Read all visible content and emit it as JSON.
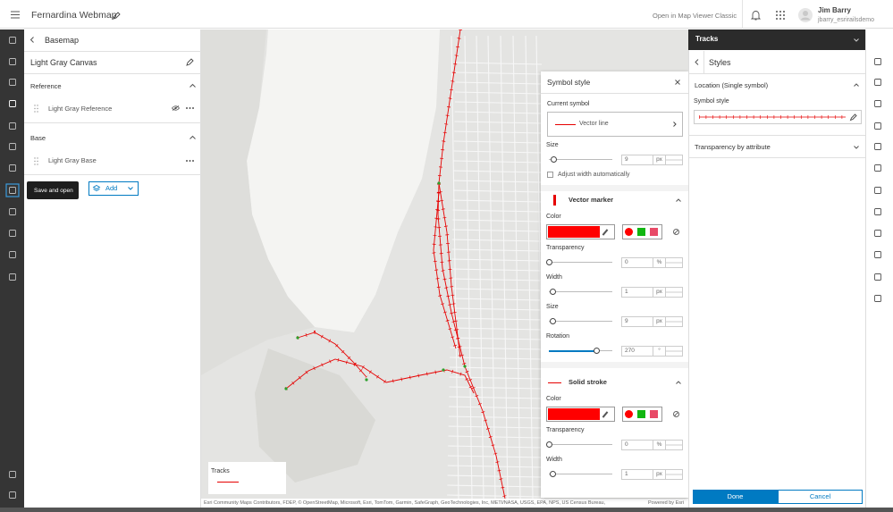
{
  "header": {
    "title": "Fernardina Webmap",
    "classic_link": "Open in Map Viewer Classic",
    "user_name": "Jim Barry",
    "user_id": "jbarry_esrirailsdemo"
  },
  "tooltip": "Save and open",
  "basemap_panel": {
    "title": "Basemap",
    "name": "Light Gray Canvas",
    "sections": [
      {
        "title": "Reference",
        "layer": "Light Gray Reference"
      },
      {
        "title": "Base",
        "layer": "Light Gray Base"
      }
    ],
    "add_button": "Add"
  },
  "map": {
    "legend_title": "Tracks",
    "attribution": "Esri Community Maps Contributors, FDEP, © OpenStreetMap, Microsoft, Esri, TomTom, Garmin, SafeGraph, GeoTechnologies, Inc, METI/NASA, USGS, EPA, NPS, US Census Bureau,",
    "powered_by": "Powered by Esri"
  },
  "symbol_style": {
    "title": "Symbol style",
    "current_symbol_label": "Current symbol",
    "current_symbol": "Vector line",
    "size": {
      "label": "Size",
      "value": 9,
      "unit": "px"
    },
    "adjust_width": "Adjust width automatically",
    "vector_marker": {
      "title": "Vector marker",
      "color_label": "Color",
      "transparency": {
        "label": "Transparency",
        "value": 0,
        "unit": "%"
      },
      "width": {
        "label": "Width",
        "value": 1,
        "unit": "px"
      },
      "size": {
        "label": "Size",
        "value": 9,
        "unit": "px"
      },
      "rotation": {
        "label": "Rotation",
        "value": 270,
        "unit": "°"
      }
    },
    "solid_stroke": {
      "title": "Solid stroke",
      "color_label": "Color",
      "transparency": {
        "label": "Transparency",
        "value": 0,
        "unit": "%"
      },
      "width": {
        "label": "Width",
        "value": 1,
        "unit": "px"
      }
    }
  },
  "styles_panel": {
    "layer": "Tracks",
    "title": "Styles",
    "location_section": "Location (Single symbol)",
    "symbol_style_label": "Symbol style",
    "transparency_section": "Transparency by attribute",
    "done": "Done",
    "cancel": "Cancel"
  }
}
